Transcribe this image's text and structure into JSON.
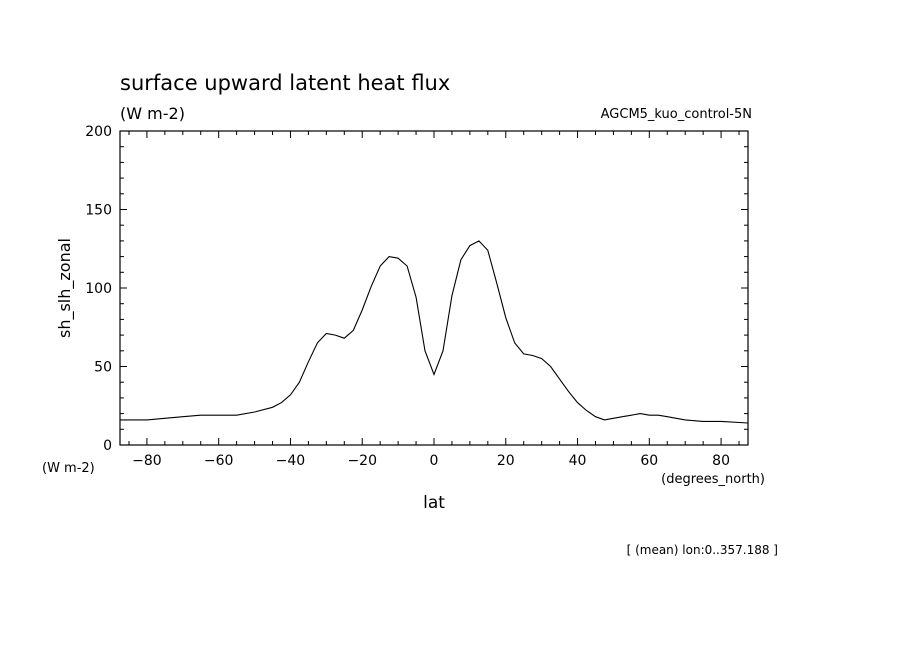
{
  "chart_data": {
    "type": "line",
    "title": "surface upward latent heat flux",
    "subtitle": "(W m-2)",
    "run_label": "AGCM5_kuo_control-5N",
    "ylabel": "sh_slh_zonal",
    "yunits": "(W m-2)",
    "xlabel": "lat",
    "xunits": "(degrees_north)",
    "footnote": "[ (mean) lon:0..357.188 ]",
    "xlim": [
      -87.5,
      87.5
    ],
    "ylim": [
      0,
      200
    ],
    "xticks": [
      -80,
      -60,
      -40,
      -20,
      0,
      20,
      40,
      60,
      80
    ],
    "yticks": [
      0,
      50,
      100,
      150,
      200
    ],
    "grid": false,
    "line_color": "#000000",
    "series": [
      {
        "x": [
          -87.5,
          -80,
          -75,
          -70,
          -65,
          -60,
          -55,
          -50,
          -45,
          -42.5,
          -40,
          -37.5,
          -35,
          -32.5,
          -30,
          -27.5,
          -25,
          -22.5,
          -20,
          -17.5,
          -15,
          -12.5,
          -10,
          -7.5,
          -5,
          -2.5,
          0,
          2.5,
          5,
          7.5,
          10,
          12.5,
          15,
          17.5,
          20,
          22.5,
          25,
          27.5,
          30,
          32.5,
          35,
          37.5,
          40,
          42.5,
          45,
          47.5,
          50,
          52.5,
          55,
          57.5,
          60,
          62.5,
          65,
          67.5,
          70,
          75,
          80,
          87.5
        ],
        "y": [
          16,
          16,
          17,
          18,
          19,
          19,
          19,
          21,
          24,
          27,
          32,
          40,
          53,
          65,
          71,
          70,
          68,
          73,
          86,
          101,
          114,
          120,
          119,
          114,
          94,
          60,
          45,
          60,
          95,
          118,
          127,
          130,
          124,
          103,
          81,
          65,
          58,
          57,
          55,
          50,
          42,
          34,
          27,
          22,
          18,
          16,
          17,
          18,
          19,
          20,
          19,
          19,
          18,
          17,
          16,
          15,
          15,
          14
        ]
      }
    ]
  }
}
